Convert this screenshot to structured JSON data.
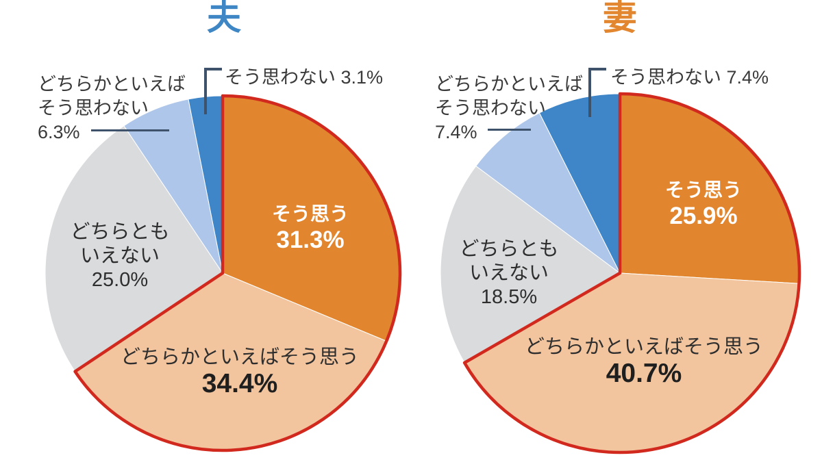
{
  "charts": [
    {
      "title": "夫",
      "title_color": "#3e86c4",
      "outline_color": "#d2291e",
      "outline_through_slice": 1,
      "slices": [
        {
          "label": "そう思う",
          "value": 31.3,
          "pct": "31.3%",
          "color": "#e1862f"
        },
        {
          "label": "どちらかといえばそう思う",
          "value": 34.4,
          "pct": "34.4%",
          "color": "#f2c59e"
        },
        {
          "label": "どちらともいえない",
          "value": 25.0,
          "pct": "25.0%",
          "color": "#d9dbdd",
          "line1": "どちらとも",
          "line2": "いえない"
        },
        {
          "label": "どちらかといえばそう思わない",
          "value": 6.3,
          "pct": "6.3%",
          "color": "#adc6e9",
          "line1": "どちらかといえば",
          "line2": "そう思わない"
        },
        {
          "label": "そう思わない",
          "value": 3.1,
          "pct": "3.1%",
          "color": "#3e86c8"
        }
      ]
    },
    {
      "title": "妻",
      "title_color": "#e2862f",
      "outline_color": "#d2291e",
      "outline_through_slice": 1,
      "slices": [
        {
          "label": "そう思う",
          "value": 25.9,
          "pct": "25.9%",
          "color": "#e1862f"
        },
        {
          "label": "どちらかといえばそう思う",
          "value": 40.7,
          "pct": "40.7%",
          "color": "#f2c59e"
        },
        {
          "label": "どちらともいえない",
          "value": 18.5,
          "pct": "18.5%",
          "color": "#d9dbdd",
          "line1": "どちらとも",
          "line2": "いえない"
        },
        {
          "label": "どちらかといえばそう思わない",
          "value": 7.4,
          "pct": "7.4%",
          "color": "#adc6e9",
          "line1": "どちらかといえば",
          "line2": "そう思わない"
        },
        {
          "label": "そう思わない",
          "value": 7.4,
          "pct": "7.4%",
          "color": "#3e86c8"
        }
      ]
    }
  ],
  "chart_data": [
    {
      "type": "pie",
      "title": "夫",
      "categories": [
        "そう思う",
        "どちらかといえばそう思う",
        "どちらともいえない",
        "どちらかといえばそう思わない",
        "そう思わない"
      ],
      "values": [
        31.3,
        34.4,
        25.0,
        6.3,
        3.1
      ],
      "unit": "%",
      "start_angle_deg": 0,
      "direction": "clockwise",
      "colors": [
        "#e1862f",
        "#f2c59e",
        "#d9dbdd",
        "#adc6e9",
        "#3e86c8"
      ],
      "red_outline_over_segments": [
        0,
        1
      ],
      "legend_position": "labels-on-and-around-pie"
    },
    {
      "type": "pie",
      "title": "妻",
      "categories": [
        "そう思う",
        "どちらかといえばそう思う",
        "どちらともいえない",
        "どちらかといえばそう思わない",
        "そう思わない"
      ],
      "values": [
        25.9,
        40.7,
        18.5,
        7.4,
        7.4
      ],
      "unit": "%",
      "start_angle_deg": 0,
      "direction": "clockwise",
      "colors": [
        "#e1862f",
        "#f2c59e",
        "#d9dbdd",
        "#adc6e9",
        "#3e86c8"
      ],
      "red_outline_over_segments": [
        0,
        1
      ],
      "legend_position": "labels-on-and-around-pie"
    }
  ]
}
